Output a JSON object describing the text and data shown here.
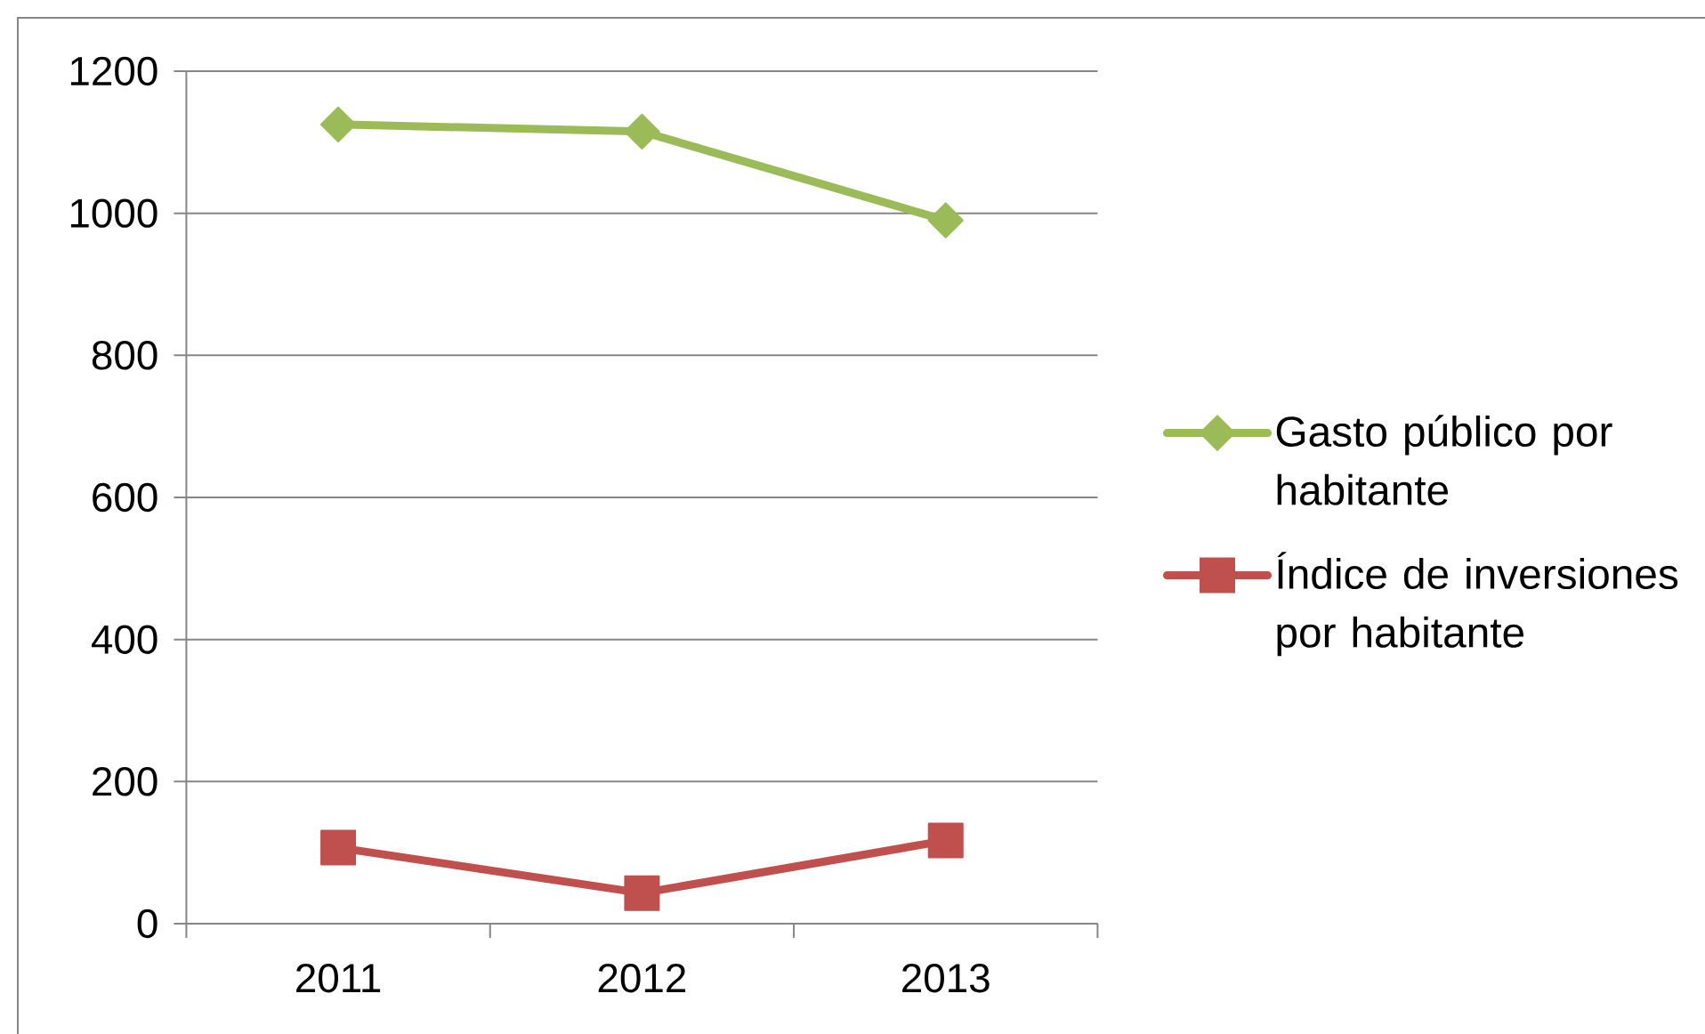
{
  "chart_data": {
    "type": "line",
    "categories": [
      "2011",
      "2012",
      "2013"
    ],
    "series": [
      {
        "name": "Gasto público por habitante",
        "color": "#9bbb59",
        "marker": "diamond",
        "values": [
          1125,
          1115,
          990
        ]
      },
      {
        "name": "Índice de inversiones por habitante",
        "color": "#c0504d",
        "marker": "square",
        "values": [
          107,
          43,
          117
        ]
      }
    ],
    "ylim": [
      0,
      1200
    ],
    "yticks": [
      0,
      200,
      400,
      600,
      800,
      1000,
      1200
    ],
    "grid": "y",
    "legend": "right"
  }
}
